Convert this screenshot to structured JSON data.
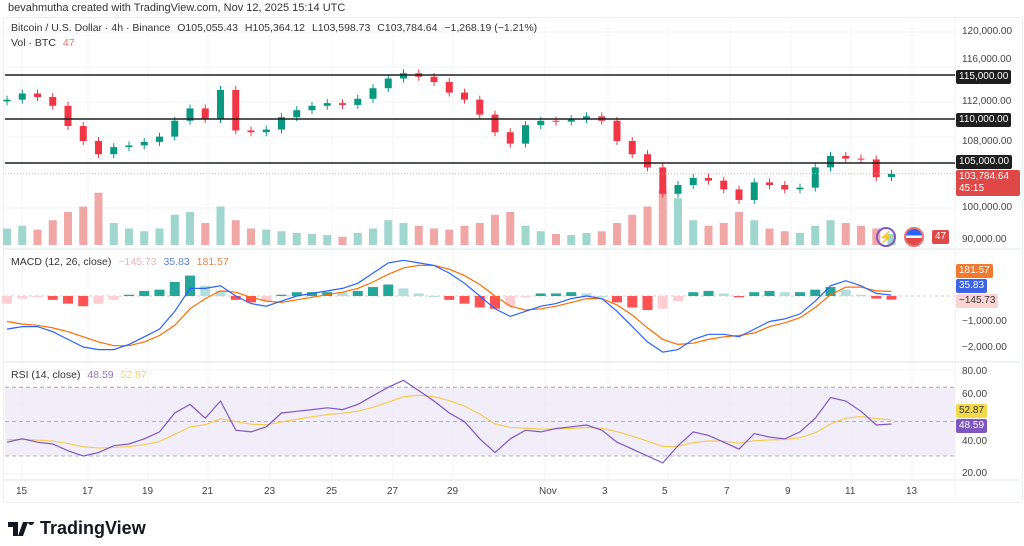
{
  "credit": "bevahmutha created with TradingView.com, Nov 12, 2025 15:14 UTC",
  "header": {
    "symbol": "Bitcoin / U.S. Dollar · 4h · Binance",
    "open": "O105,055.43",
    "high": "H105,364.12",
    "low": "L103,598.73",
    "close": "C103,784.64",
    "change": "−1,268.19 (−1.21%)",
    "vol_label": "Vol · BTC",
    "vol_value": "47"
  },
  "price_axis": [
    "120,000.00",
    "116,000.00",
    "112,000.00",
    "108,000.00",
    "100,000.00",
    "90,000.00"
  ],
  "levels": [
    {
      "label": "115,000.00",
      "value": 115000
    },
    {
      "label": "110,000.00",
      "value": 110000
    },
    {
      "label": "105,000.00",
      "value": 105000
    }
  ],
  "last_price": {
    "label": "103,784.64",
    "countdown": "45:15",
    "value": 103784.64
  },
  "volume_tag": "47",
  "macd": {
    "title": "MACD (12, 26, close)",
    "hist": "−145.73",
    "macd": "35.83",
    "signal": "181.57",
    "axis": [
      "−1,000.00",
      "−2,000.00"
    ]
  },
  "rsi": {
    "title": "RSI (14, close)",
    "rsi": "48.59",
    "ma": "52.87",
    "axis": [
      "80.00",
      "60.00",
      "40.00",
      "20.00"
    ]
  },
  "date_axis": [
    "15",
    "17",
    "19",
    "21",
    "23",
    "25",
    "27",
    "29",
    "Nov",
    "3",
    "5",
    "7",
    "9",
    "11",
    "13"
  ],
  "brand": "TradingView",
  "icons": [
    "lightning-icon",
    "us-flag-icon"
  ],
  "colors": {
    "up": "#089981",
    "down": "#f23645",
    "macd": "#2962ff",
    "signal": "#ff6d00",
    "rsi": "#7e57c2",
    "rsi_ma": "#f7c948"
  },
  "chart_data": {
    "type": "candlestick",
    "title": "Bitcoin / U.S. Dollar · 4h · Binance",
    "x_start_day": "Oct 14.5",
    "x_step_days": 0.5,
    "close_k": [
      112.2,
      112.9,
      112.5,
      111.5,
      109.2,
      107.5,
      106.0,
      106.8,
      107.0,
      107.4,
      108.0,
      109.8,
      111.2,
      110.0,
      113.3,
      108.7,
      108.5,
      108.8,
      110.2,
      111.0,
      111.5,
      111.8,
      111.6,
      112.3,
      113.5,
      114.6,
      115.2,
      114.8,
      114.2,
      113.0,
      112.2,
      110.5,
      108.5,
      107.2,
      109.3,
      109.8,
      109.7,
      110.0,
      110.3,
      109.8,
      107.5,
      106.0,
      104.5,
      101.5,
      102.5,
      103.3,
      103.0,
      102.0,
      100.8,
      102.8,
      102.5,
      102.0,
      102.2,
      104.5,
      105.8,
      105.5,
      105.4,
      103.4,
      103.78
    ],
    "volume": [
      30,
      35,
      28,
      45,
      60,
      70,
      95,
      40,
      30,
      25,
      30,
      55,
      60,
      40,
      70,
      45,
      30,
      28,
      25,
      22,
      20,
      18,
      15,
      22,
      30,
      45,
      40,
      35,
      30,
      28,
      35,
      40,
      55,
      60,
      35,
      25,
      20,
      18,
      22,
      25,
      40,
      55,
      70,
      100,
      85,
      45,
      35,
      40,
      60,
      45,
      30,
      25,
      22,
      35,
      45,
      40,
      35,
      30,
      20
    ],
    "macd_k": [
      -1.3,
      -1.2,
      -1.2,
      -1.4,
      -1.7,
      -2.0,
      -2.1,
      -2.1,
      -1.9,
      -1.6,
      -1.3,
      -0.6,
      0.3,
      0.3,
      0.4,
      0.0,
      -0.3,
      -0.4,
      -0.2,
      0.0,
      0.1,
      0.2,
      0.3,
      0.5,
      0.9,
      1.3,
      1.4,
      1.3,
      1.2,
      0.9,
      0.5,
      0.0,
      -0.5,
      -0.8,
      -0.6,
      -0.4,
      -0.3,
      -0.1,
      0.0,
      -0.1,
      -0.6,
      -1.2,
      -1.8,
      -2.2,
      -2.1,
      -1.7,
      -1.5,
      -1.5,
      -1.6,
      -1.3,
      -1.0,
      -0.9,
      -0.7,
      -0.2,
      0.4,
      0.6,
      0.4,
      0.1,
      0.036
    ],
    "signal_k": [
      -1.0,
      -1.1,
      -1.15,
      -1.25,
      -1.4,
      -1.6,
      -1.8,
      -1.95,
      -1.95,
      -1.8,
      -1.55,
      -1.15,
      -0.5,
      -0.1,
      0.2,
      0.15,
      -0.05,
      -0.2,
      -0.25,
      -0.15,
      -0.05,
      0.05,
      0.15,
      0.3,
      0.55,
      0.85,
      1.1,
      1.2,
      1.2,
      1.05,
      0.8,
      0.45,
      0.0,
      -0.4,
      -0.55,
      -0.5,
      -0.4,
      -0.25,
      -0.1,
      -0.1,
      -0.35,
      -0.75,
      -1.25,
      -1.7,
      -1.9,
      -1.85,
      -1.7,
      -1.6,
      -1.55,
      -1.45,
      -1.2,
      -1.05,
      -0.85,
      -0.45,
      0.05,
      0.35,
      0.35,
      0.2,
      0.18
    ],
    "rsi": [
      38,
      40,
      38,
      37,
      33,
      30,
      32,
      36,
      37,
      40,
      44,
      55,
      60,
      52,
      62,
      45,
      44,
      47,
      55,
      56,
      57,
      58,
      57,
      60,
      65,
      70,
      74,
      68,
      62,
      55,
      50,
      40,
      32,
      40,
      45,
      44,
      46,
      47,
      48,
      45,
      38,
      34,
      30,
      26,
      36,
      44,
      42,
      38,
      34,
      43,
      41,
      40,
      44,
      52,
      64,
      62,
      56,
      48,
      48.59
    ],
    "rsi_bands": [
      70,
      30
    ],
    "ylim_price": [
      90000,
      120000
    ]
  }
}
